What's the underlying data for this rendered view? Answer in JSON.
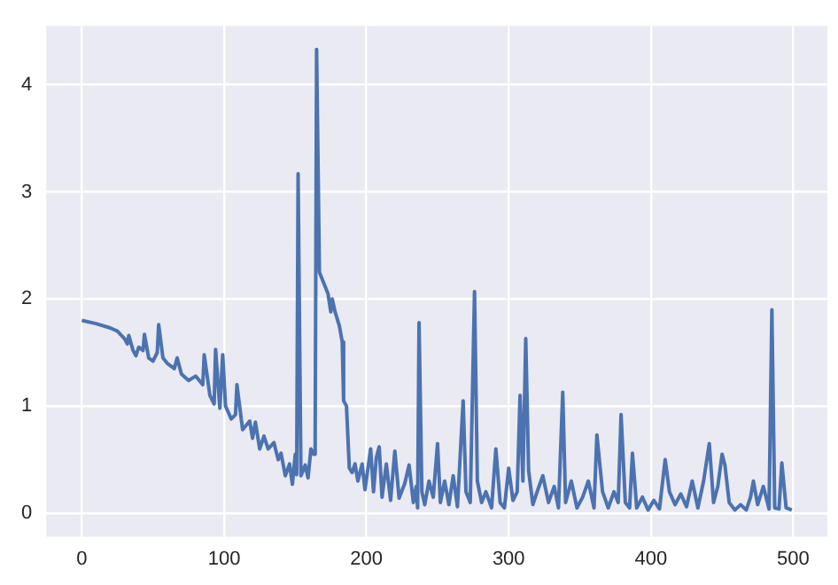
{
  "chart_data": {
    "type": "line",
    "color": "#4c72b0",
    "x": [
      0,
      10,
      20,
      25,
      30,
      32,
      33,
      36,
      38,
      40,
      43,
      44,
      47,
      50,
      53,
      54,
      57,
      60,
      65,
      67,
      70,
      75,
      80,
      85,
      86,
      90,
      93,
      94,
      97,
      99,
      101,
      105,
      108,
      109,
      113,
      118,
      120,
      122,
      125,
      128,
      131,
      135,
      138,
      140,
      143,
      146,
      148,
      150,
      151,
      152,
      154,
      157,
      159,
      161,
      163,
      164,
      165,
      167,
      170,
      173,
      175,
      176,
      178,
      181,
      183,
      184,
      186,
      188,
      190,
      192,
      194,
      197,
      199,
      203,
      205,
      207,
      209,
      211,
      214,
      217,
      220,
      223,
      227,
      230,
      233,
      235,
      236,
      237,
      239,
      241,
      244,
      247,
      250,
      252,
      255,
      258,
      261,
      264,
      268,
      270,
      273,
      276,
      278,
      281,
      284,
      288,
      291,
      294,
      297,
      300,
      303,
      306,
      308,
      310,
      312,
      314,
      317,
      320,
      324,
      328,
      332,
      335,
      338,
      340,
      344,
      348,
      352,
      356,
      360,
      362,
      366,
      370,
      374,
      377,
      379,
      382,
      385,
      387,
      390,
      394,
      398,
      402,
      406,
      410,
      413,
      417,
      421,
      425,
      429,
      433,
      437,
      441,
      444,
      447,
      450,
      452,
      455,
      459,
      463,
      467,
      470,
      472,
      475,
      479,
      483,
      485,
      487,
      490,
      492,
      495,
      499
    ],
    "values": [
      1.8,
      1.77,
      1.73,
      1.7,
      1.63,
      1.58,
      1.66,
      1.52,
      1.47,
      1.55,
      1.52,
      1.67,
      1.45,
      1.42,
      1.5,
      1.76,
      1.45,
      1.4,
      1.35,
      1.45,
      1.3,
      1.24,
      1.28,
      1.2,
      1.48,
      1.1,
      1.02,
      1.53,
      0.98,
      1.48,
      1.0,
      0.88,
      0.92,
      1.2,
      0.78,
      0.86,
      0.7,
      0.85,
      0.6,
      0.72,
      0.6,
      0.66,
      0.5,
      0.56,
      0.35,
      0.46,
      0.27,
      0.55,
      0.36,
      3.17,
      0.35,
      0.45,
      0.33,
      0.6,
      0.55,
      0.72,
      4.33,
      2.25,
      2.15,
      2.05,
      1.88,
      2.0,
      1.88,
      1.75,
      1.6,
      1.05,
      1.0,
      0.42,
      0.38,
      0.46,
      0.3,
      0.46,
      0.22,
      0.6,
      0.2,
      0.52,
      0.62,
      0.15,
      0.46,
      0.12,
      0.58,
      0.14,
      0.28,
      0.45,
      0.1,
      0.25,
      0.05,
      1.78,
      0.2,
      0.08,
      0.3,
      0.15,
      0.65,
      0.1,
      0.3,
      0.08,
      0.35,
      0.06,
      1.05,
      0.2,
      0.1,
      2.07,
      0.3,
      0.1,
      0.2,
      0.05,
      0.6,
      0.1,
      0.05,
      0.42,
      0.12,
      0.2,
      1.1,
      0.3,
      1.63,
      0.4,
      0.08,
      0.2,
      0.35,
      0.1,
      0.25,
      0.05,
      1.13,
      0.1,
      0.3,
      0.05,
      0.15,
      0.3,
      0.05,
      0.73,
      0.2,
      0.05,
      0.2,
      0.1,
      0.92,
      0.1,
      0.05,
      0.56,
      0.05,
      0.15,
      0.03,
      0.12,
      0.04,
      0.5,
      0.2,
      0.08,
      0.18,
      0.06,
      0.3,
      0.05,
      0.3,
      0.65,
      0.1,
      0.25,
      0.55,
      0.45,
      0.1,
      0.03,
      0.08,
      0.03,
      0.15,
      0.3,
      0.08,
      0.25,
      0.04,
      1.9,
      0.05,
      0.04,
      0.47,
      0.05,
      0.03
    ],
    "xlim": [
      -25,
      524
    ],
    "ylim": [
      -0.22,
      4.55
    ],
    "xticks": [
      0,
      100,
      200,
      300,
      400,
      500
    ],
    "yticks": [
      0,
      1,
      2,
      3,
      4
    ],
    "grid": true,
    "legend": false
  }
}
